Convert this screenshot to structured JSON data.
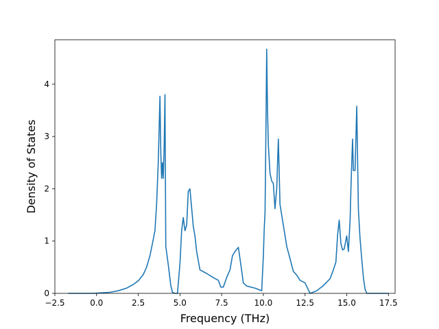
{
  "chart_data": {
    "type": "line",
    "title": "",
    "xlabel": "Frequency (THz)",
    "ylabel": "Density of States",
    "xlim": [
      -2.5,
      17.9
    ],
    "ylim": [
      0,
      4.85
    ],
    "xticks": [
      -2.5,
      0.0,
      2.5,
      5.0,
      7.5,
      10.0,
      12.5,
      15.0,
      17.5
    ],
    "xtick_labels": [
      "−2.5",
      "0.0",
      "2.5",
      "5.0",
      "7.5",
      "10.0",
      "12.5",
      "15.0",
      "17.5"
    ],
    "yticks": [
      0,
      1,
      2,
      3,
      4
    ],
    "ytick_labels": [
      "0",
      "1",
      "2",
      "3",
      "4"
    ],
    "grid": false,
    "legend": "none",
    "series": [
      {
        "color": "#1f77b4",
        "x": [
          -1.7,
          -1.2,
          -0.7,
          -0.2,
          0.3,
          0.8,
          1.3,
          1.8,
          2.2,
          2.5,
          2.8,
          3.0,
          3.2,
          3.35,
          3.5,
          3.6,
          3.7,
          3.8,
          3.85,
          3.9,
          3.95,
          4.0,
          4.05,
          4.1,
          4.15,
          4.3,
          4.45,
          4.55,
          4.7,
          4.85,
          5.0,
          5.1,
          5.2,
          5.3,
          5.4,
          5.5,
          5.6,
          5.8,
          5.9,
          6.0,
          6.2,
          6.6,
          7.0,
          7.3,
          7.45,
          7.6,
          7.8,
          8.0,
          8.15,
          8.3,
          8.5,
          8.65,
          8.8,
          9.0,
          9.5,
          9.9,
          10.0,
          10.05,
          10.1,
          10.15,
          10.2,
          10.25,
          10.3,
          10.4,
          10.5,
          10.6,
          10.7,
          10.8,
          10.9,
          11.0,
          11.2,
          11.4,
          11.8,
          12.0,
          12.2,
          12.5,
          12.8,
          13.2,
          13.6,
          14.0,
          14.2,
          14.35,
          14.45,
          14.55,
          14.65,
          14.75,
          14.85,
          15.0,
          15.1,
          15.2,
          15.25,
          15.3,
          15.35,
          15.4,
          15.5,
          15.6,
          15.7,
          15.8,
          15.9,
          16.0,
          16.1,
          16.2,
          16.3,
          17.5
        ],
        "y": [
          0.0,
          0.0,
          0.0,
          0.0,
          0.01,
          0.02,
          0.05,
          0.1,
          0.17,
          0.24,
          0.36,
          0.5,
          0.72,
          0.95,
          1.2,
          1.7,
          2.5,
          3.77,
          2.7,
          2.2,
          2.5,
          2.2,
          2.8,
          3.8,
          0.9,
          0.55,
          0.15,
          0.02,
          0.0,
          0.0,
          0.58,
          1.2,
          1.45,
          1.2,
          1.3,
          1.95,
          2.0,
          1.28,
          1.1,
          0.8,
          0.45,
          0.38,
          0.3,
          0.25,
          0.12,
          0.12,
          0.3,
          0.45,
          0.72,
          0.8,
          0.88,
          0.55,
          0.2,
          0.14,
          0.1,
          0.05,
          0.7,
          1.2,
          1.55,
          3.0,
          4.67,
          3.5,
          2.85,
          2.3,
          2.15,
          2.1,
          1.62,
          2.0,
          2.95,
          1.7,
          1.3,
          0.9,
          0.42,
          0.35,
          0.25,
          0.2,
          0.0,
          0.05,
          0.15,
          0.28,
          0.45,
          0.6,
          1.1,
          1.4,
          0.95,
          0.83,
          0.85,
          1.1,
          0.8,
          1.4,
          2.0,
          2.5,
          2.95,
          2.35,
          2.35,
          3.58,
          1.6,
          1.05,
          0.65,
          0.3,
          0.08,
          0.0,
          0.0,
          0.0
        ]
      }
    ]
  }
}
